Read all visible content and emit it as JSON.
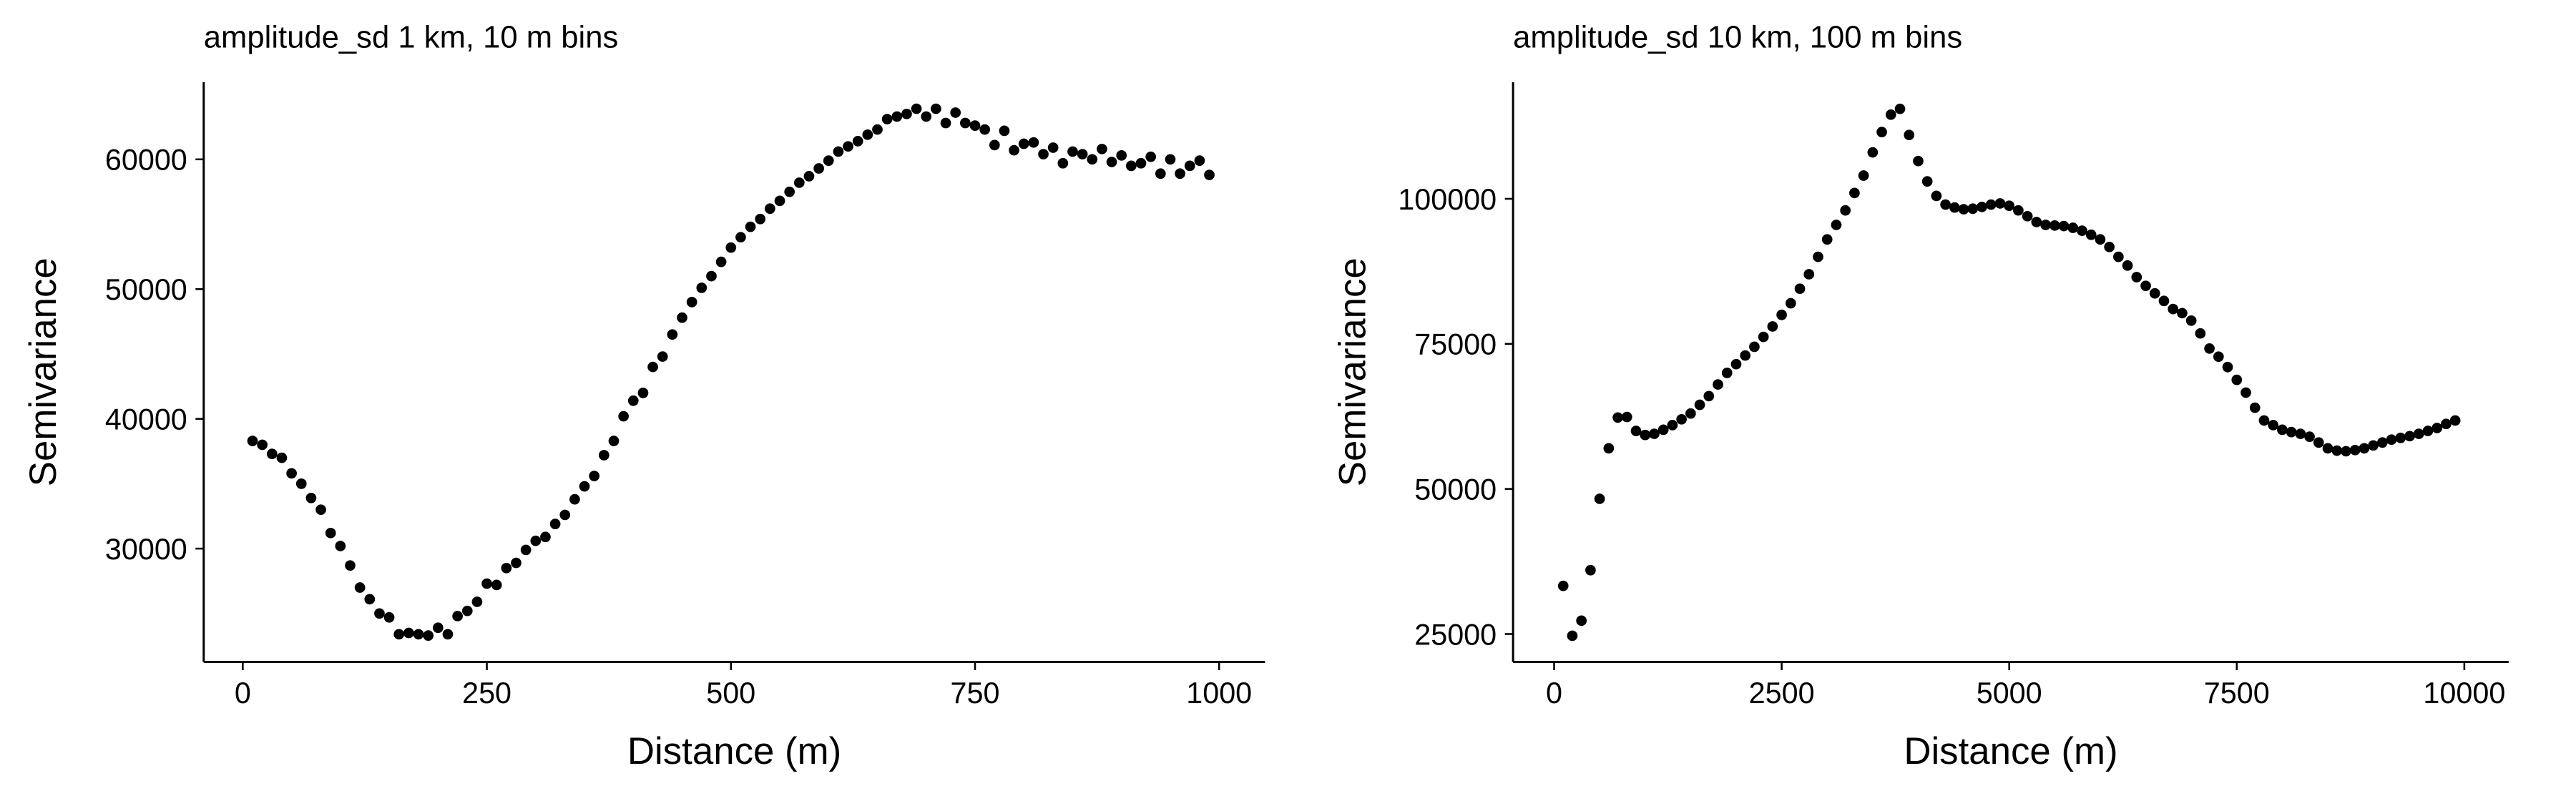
{
  "chart_data": [
    {
      "type": "scatter",
      "title": "amplitude_sd 1 km, 10 m bins",
      "xlabel": "Distance (m)",
      "ylabel": "Semivariance",
      "color": "#000000",
      "x": [
        10,
        20,
        30,
        40,
        50,
        60,
        70,
        80,
        90,
        100,
        110,
        120,
        130,
        140,
        150,
        160,
        170,
        180,
        190,
        200,
        210,
        220,
        230,
        240,
        250,
        260,
        270,
        280,
        290,
        300,
        310,
        320,
        330,
        340,
        350,
        360,
        370,
        380,
        390,
        400,
        410,
        420,
        430,
        440,
        450,
        460,
        470,
        480,
        490,
        500,
        510,
        520,
        530,
        540,
        550,
        560,
        570,
        580,
        590,
        600,
        610,
        620,
        630,
        640,
        650,
        660,
        670,
        680,
        690,
        700,
        710,
        720,
        730,
        740,
        750,
        760,
        770,
        780,
        790,
        800,
        810,
        820,
        830,
        840,
        850,
        860,
        870,
        880,
        890,
        900,
        910,
        920,
        930,
        940,
        950,
        960,
        970,
        980,
        990
      ],
      "values": [
        38300,
        38000,
        37300,
        37000,
        35800,
        35000,
        33900,
        33000,
        31200,
        30200,
        28700,
        27000,
        26100,
        25000,
        24700,
        23400,
        23500,
        23400,
        23300,
        23900,
        23400,
        24800,
        25200,
        25900,
        27300,
        27200,
        28500,
        28900,
        29900,
        30600,
        30900,
        31900,
        32600,
        33800,
        34800,
        35600,
        37200,
        38300,
        40200,
        41400,
        42000,
        44000,
        44800,
        46500,
        47800,
        49000,
        50100,
        51000,
        52100,
        53200,
        54000,
        54800,
        55400,
        56200,
        56800,
        57500,
        58200,
        58700,
        59300,
        59900,
        60600,
        61000,
        61400,
        61900,
        62300,
        63100,
        63300,
        63500,
        63900,
        63300,
        63900,
        62800,
        63600,
        62800,
        62600,
        62300,
        61100,
        62200,
        60700,
        61200,
        61300,
        60400,
        60900,
        59700,
        60600,
        60400,
        60000,
        60800,
        59800,
        60300,
        59500,
        59700,
        60200,
        58900,
        60000,
        58900,
        59500,
        59900,
        58800
      ],
      "xlim": [
        -40,
        1047
      ],
      "ylim": [
        21266,
        65949
      ],
      "xticks": [
        0,
        250,
        500,
        750,
        1000
      ],
      "yticks": [
        30000,
        40000,
        50000,
        60000
      ]
    },
    {
      "type": "scatter",
      "title": "amplitude_sd 10 km, 100 m bins",
      "xlabel": "Distance (m)",
      "ylabel": "Semivariance",
      "color": "#000000",
      "x": [
        100,
        200,
        300,
        400,
        500,
        600,
        700,
        800,
        900,
        1000,
        1100,
        1200,
        1300,
        1400,
        1500,
        1600,
        1700,
        1800,
        1900,
        2000,
        2100,
        2200,
        2300,
        2400,
        2500,
        2600,
        2700,
        2800,
        2900,
        3000,
        3100,
        3200,
        3300,
        3400,
        3500,
        3600,
        3700,
        3800,
        3900,
        4000,
        4100,
        4200,
        4300,
        4400,
        4500,
        4600,
        4700,
        4800,
        4900,
        5000,
        5100,
        5200,
        5300,
        5400,
        5500,
        5600,
        5700,
        5800,
        5900,
        6000,
        6100,
        6200,
        6300,
        6400,
        6500,
        6600,
        6700,
        6800,
        6900,
        7000,
        7100,
        7200,
        7300,
        7400,
        7500,
        7600,
        7700,
        7800,
        7900,
        8000,
        8100,
        8200,
        8300,
        8400,
        8500,
        8600,
        8700,
        8800,
        8900,
        9000,
        9100,
        9200,
        9300,
        9400,
        9500,
        9600,
        9700,
        9800,
        9900
      ],
      "values": [
        33300,
        24700,
        27300,
        36000,
        48300,
        57000,
        62300,
        62400,
        60000,
        59300,
        59500,
        60200,
        61000,
        62000,
        63000,
        64500,
        66000,
        68000,
        70000,
        71500,
        73000,
        74500,
        76200,
        78000,
        80000,
        82000,
        84500,
        87000,
        90000,
        93000,
        95500,
        98000,
        101000,
        104000,
        108000,
        111500,
        114500,
        115500,
        111000,
        106500,
        103000,
        100500,
        99000,
        98500,
        98200,
        98300,
        98600,
        99000,
        99200,
        98800,
        98000,
        97000,
        96000,
        95500,
        95400,
        95300,
        95000,
        94500,
        93800,
        93000,
        91700,
        90000,
        88500,
        86500,
        85000,
        83700,
        82400,
        81000,
        80300,
        79000,
        76800,
        74200,
        72800,
        71000,
        68800,
        66600,
        64000,
        61800,
        61000,
        60200,
        59800,
        59500,
        59000,
        58000,
        57000,
        56600,
        56500,
        56700,
        57000,
        57500,
        58000,
        58500,
        58800,
        59100,
        59500,
        60000,
        60500,
        61200,
        61800
      ],
      "xlim": [
        -451,
        10487
      ],
      "ylim": [
        20188,
        120100
      ],
      "xticks": [
        0,
        2500,
        5000,
        7500,
        10000
      ],
      "yticks": [
        25000,
        50000,
        75000,
        100000
      ]
    }
  ]
}
